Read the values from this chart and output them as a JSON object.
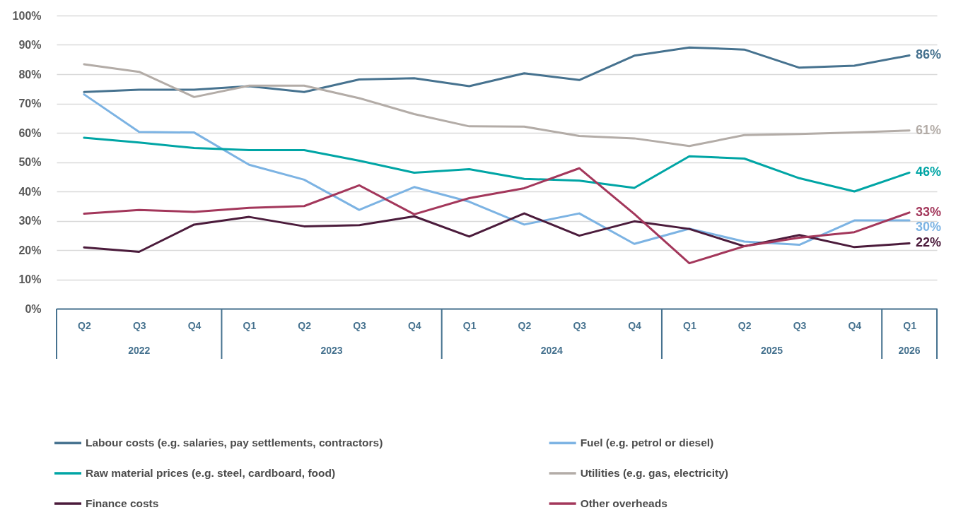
{
  "chart_data": {
    "type": "line",
    "categories": [
      "Q2",
      "Q3",
      "Q4",
      "Q1",
      "Q2",
      "Q3",
      "Q4",
      "Q1",
      "Q2",
      "Q3",
      "Q4",
      "Q1",
      "Q2",
      "Q3",
      "Q4",
      "Q1"
    ],
    "annotations": [
      "2022",
      "2023",
      "2024",
      "2025",
      "2026"
    ],
    "series": [
      {
        "name": "Labour costs (e.g. salaries, pay settlements, contractors)",
        "color": "#46728f",
        "values": [
          73.9,
          74.7,
          74.7,
          75.9,
          73.9,
          78.2,
          78.6,
          75.9,
          80.3,
          78.0,
          86.3,
          89.1,
          88.4,
          82.2,
          82.9,
          86.4
        ],
        "value_labels": [
          null,
          null,
          null,
          null,
          null,
          null,
          null,
          null,
          null,
          null,
          null,
          null,
          null,
          null,
          null,
          "86%"
        ]
      },
      {
        "name": "Fuel (e.g. petrol or diesel)",
        "color": "#7cb3e3",
        "values": [
          73.1,
          60.3,
          60.1,
          49.1,
          44.0,
          33.7,
          41.5,
          36.5,
          28.7,
          32.5,
          22.1,
          27.3,
          22.9,
          21.8,
          30.1,
          30.1
        ],
        "value_labels": [
          null,
          null,
          null,
          null,
          null,
          null,
          null,
          null,
          null,
          null,
          null,
          null,
          null,
          null,
          null,
          "30%"
        ]
      },
      {
        "name": "Raw material prices (e.g. steel, cardboard, food)",
        "color": "#00a5a5",
        "values": [
          58.3,
          56.7,
          54.8,
          54.1,
          54.1,
          50.5,
          46.4,
          47.6,
          44.3,
          43.7,
          41.2,
          52.0,
          51.2,
          44.5,
          40.0,
          46.4
        ],
        "value_labels": [
          null,
          null,
          null,
          null,
          null,
          null,
          null,
          null,
          null,
          null,
          null,
          null,
          null,
          null,
          null,
          "46%"
        ]
      },
      {
        "name": "Utilities (e.g. gas, electricity)",
        "color": "#b3aca7",
        "values": [
          83.4,
          80.8,
          72.2,
          76.1,
          76.1,
          71.8,
          66.4,
          62.2,
          62.1,
          58.9,
          58.1,
          55.5,
          59.2,
          59.6,
          60.1,
          60.8
        ],
        "value_labels": [
          null,
          null,
          null,
          null,
          null,
          null,
          null,
          null,
          null,
          null,
          null,
          null,
          null,
          null,
          null,
          "61%"
        ]
      },
      {
        "name": "Finance costs",
        "color": "#4b1b3b",
        "values": [
          20.9,
          19.4,
          28.7,
          31.3,
          28.1,
          28.5,
          31.5,
          24.6,
          32.5,
          24.9,
          29.8,
          27.2,
          21.3,
          25.1,
          21.0,
          22.3
        ],
        "value_labels": [
          null,
          null,
          null,
          null,
          null,
          null,
          null,
          null,
          null,
          null,
          null,
          null,
          null,
          null,
          null,
          "22%"
        ]
      },
      {
        "name": "Other overheads",
        "color": "#a3375b",
        "values": [
          32.4,
          33.7,
          33.0,
          34.4,
          35.0,
          42.1,
          32.2,
          37.7,
          41.1,
          47.9,
          32.3,
          15.5,
          21.3,
          24.2,
          26.1,
          32.8
        ],
        "value_labels": [
          null,
          null,
          null,
          null,
          null,
          null,
          null,
          null,
          null,
          null,
          null,
          null,
          null,
          null,
          null,
          "33%"
        ]
      }
    ],
    "ylim": [
      0,
      100
    ],
    "yticks": [
      {
        "value": 0,
        "label": "0%"
      },
      {
        "value": 10,
        "label": "10%"
      },
      {
        "value": 20,
        "label": "20%"
      },
      {
        "value": 30,
        "label": "30%"
      },
      {
        "value": 40,
        "label": "40%"
      },
      {
        "value": 50,
        "label": "50%"
      },
      {
        "value": 60,
        "label": "60%"
      },
      {
        "value": 70,
        "label": "70%"
      },
      {
        "value": 80,
        "label": "80%"
      },
      {
        "value": 90,
        "label": "90%"
      },
      {
        "value": 100,
        "label": "100%"
      }
    ],
    "grid": "y",
    "legend": "bottom"
  }
}
